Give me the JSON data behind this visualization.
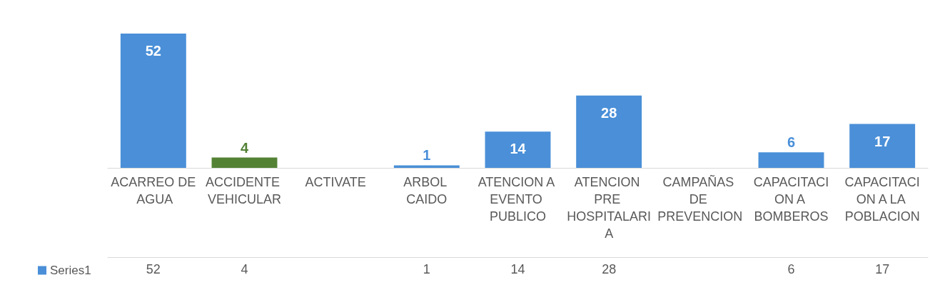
{
  "chart_data": {
    "type": "bar",
    "categories": [
      "ACARREO DE AGUA",
      "ACCIDENTE VEHICULAR",
      "ACTIVATE",
      "ARBOL CAIDO",
      "ATENCION A EVENTO PUBLICO",
      "ATENCION PRE HOSPITALARIA",
      "CAMPAÑAS DE PREVENCION",
      "CAPACITACION A BOMBEROS",
      "CAPACITACION A LA POBLACION"
    ],
    "series": [
      {
        "name": "Series1",
        "color": "#4a8fd8",
        "colors": [
          "#4a8fd8",
          "#548235",
          "#4a8fd8",
          "#4a8fd8",
          "#4a8fd8",
          "#4a8fd8",
          "#4a8fd8",
          "#4a8fd8",
          "#4a8fd8"
        ],
        "values": [
          52,
          4,
          null,
          1,
          14,
          28,
          null,
          6,
          17
        ],
        "value_labels": [
          "52",
          "4",
          null,
          "1",
          "14",
          "28",
          null,
          "6",
          "17"
        ]
      }
    ],
    "data_labels": true,
    "legend": "bottom left",
    "grid": false
  }
}
